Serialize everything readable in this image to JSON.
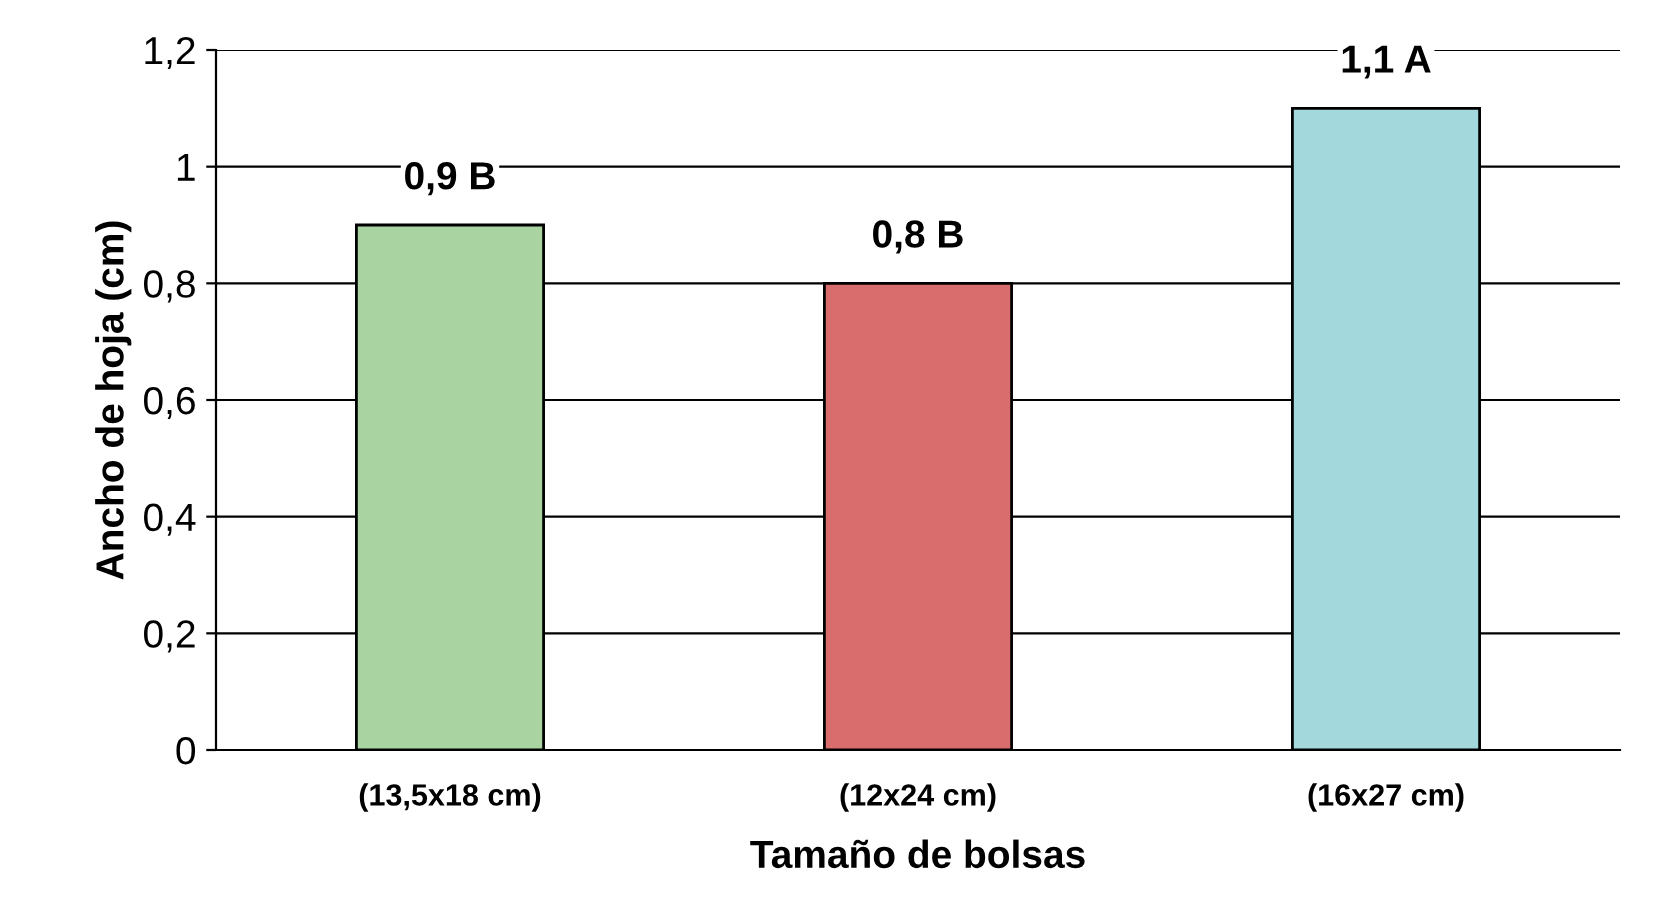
{
  "chart_data": {
    "type": "bar",
    "xlabel": "Tamaño de bolsas",
    "ylabel": "Ancho de hoja (cm)",
    "categories": [
      "(13,5x18 cm)",
      "(12x24 cm)",
      "(16x27 cm)"
    ],
    "values": [
      0.9,
      0.8,
      1.1
    ],
    "colors": [
      "#a9d4a2",
      "#d96c6c",
      "#a3d9dc"
    ],
    "value_labels": [
      "0,9 B",
      "0,8 B",
      "1,1 A"
    ],
    "ylim": [
      0,
      1.2
    ],
    "yticks": [
      0,
      {
        "value": 0.2,
        "label": "0,2"
      },
      {
        "value": 0.4,
        "label": "0,4"
      },
      {
        "value": 0.6,
        "label": "0,6"
      },
      {
        "value": 0.8,
        "label": "0,8"
      },
      1,
      {
        "value": 1.2,
        "label": "1,2"
      }
    ],
    "grid": "y"
  }
}
